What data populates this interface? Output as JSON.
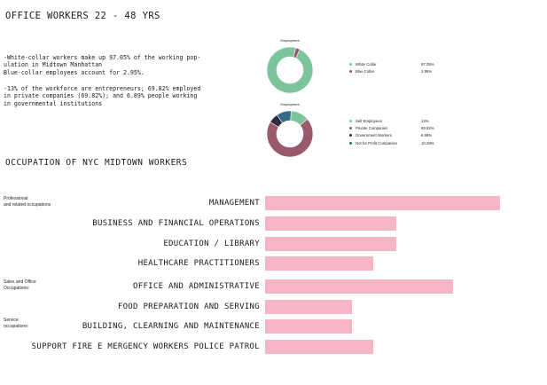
{
  "title": "OFFICE WORKERS 22 - 48 YRS",
  "paragraph1": [
    "-White-collar workers make up 97.05% of the working pop-",
    "ulation in Midtown Manhattan",
    "Blue-collar employees account for 2.95%."
  ],
  "paragraph2": [
    "-13% of the workforce are entrepreneurs; 69.82% employed",
    "in private companies (69.82%); and 6.89% people working",
    "in governmental institutions"
  ],
  "section_title": "OCCUPATION OF NYC MIDTOWN  WORKERS",
  "chart_data": [
    {
      "type": "pie",
      "title": "Employment",
      "donut": true,
      "slices": [
        {
          "label": "White Collar",
          "value": 97.05,
          "display": "97.05%",
          "color": "#7cc49a"
        },
        {
          "label": "Blue Collar",
          "value": 2.95,
          "display": "2.95%",
          "color": "#9b4f68"
        }
      ]
    },
    {
      "type": "pie",
      "title": "Employment",
      "donut": true,
      "slices": [
        {
          "label": "Self Employees",
          "value": 13,
          "display": "13%",
          "color": "#7cc49a"
        },
        {
          "label": "Private Companies",
          "value": 69.82,
          "display": "69.82%",
          "color": "#9b5a6c"
        },
        {
          "label": "Government Workers",
          "value": 6.89,
          "display": "6.89%",
          "color": "#2d2d3d"
        },
        {
          "label": "Not for Profit Companies",
          "value": 10.29,
          "display": "10.29%",
          "color": "#356a8a"
        }
      ]
    },
    {
      "type": "bar",
      "orientation": "horizontal",
      "title": "OCCUPATION OF NYC MIDTOWN  WORKERS",
      "bar_color": "#f7b6c6",
      "groups": [
        {
          "label_lines": [
            "Professional",
            "and related occupations"
          ],
          "first_index": 0
        },
        {
          "label_lines": [
            "Sales and Office",
            "Occupations:"
          ],
          "first_index": 4
        },
        {
          "label_lines": [
            "Service",
            "occupations:"
          ],
          "first_index": 6
        }
      ],
      "categories": [
        "MANAGEMENT",
        "BUSINESS AND FINANCIAL OPERATIONS",
        "EDUCATION / LIBRARY",
        "HEALTHCARE PRACTITIONERS",
        "OFFICE AND ADMINISTRATIVE",
        "FOOD PREPARATION AND SERVING",
        "BUILDING, CLEARNING AND MAINTENANCE",
        "SUPPORT FIRE E MERGENCY WORKERS  POLICE PATROL"
      ],
      "values": [
        100,
        56,
        56,
        46,
        80,
        37,
        37,
        46
      ],
      "xlim": [
        0,
        100
      ]
    }
  ]
}
